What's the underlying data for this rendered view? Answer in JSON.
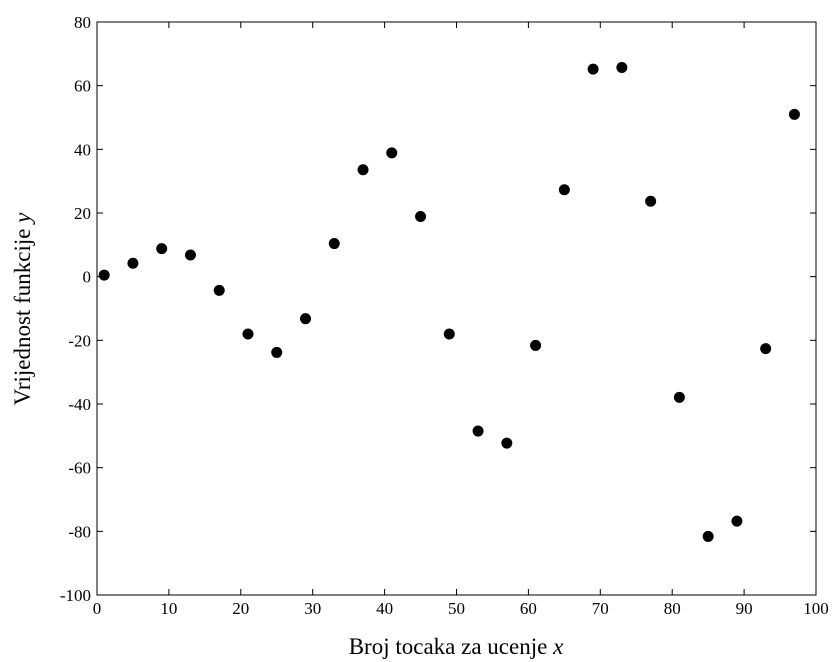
{
  "chart_data": {
    "type": "scatter",
    "xlabel": "Broj tocaka za ucenje",
    "xlabel_var": "x",
    "ylabel": "Vrijednost funkcije",
    "ylabel_var": "y",
    "xlim": [
      0,
      100
    ],
    "ylim": [
      -100,
      80
    ],
    "xticks": [
      0,
      10,
      20,
      30,
      40,
      50,
      60,
      70,
      80,
      90,
      100
    ],
    "yticks": [
      -100,
      -80,
      -60,
      -40,
      -20,
      0,
      20,
      40,
      60,
      80
    ],
    "grid": false,
    "marker_color": "#000000",
    "points": [
      {
        "x": 1,
        "y": 0.5
      },
      {
        "x": 5,
        "y": 4.2
      },
      {
        "x": 9,
        "y": 8.8
      },
      {
        "x": 13,
        "y": 6.8
      },
      {
        "x": 17,
        "y": -4.3
      },
      {
        "x": 21,
        "y": -18
      },
      {
        "x": 25,
        "y": -23.8
      },
      {
        "x": 29,
        "y": -13.2
      },
      {
        "x": 33,
        "y": 10.4
      },
      {
        "x": 37,
        "y": 33.6
      },
      {
        "x": 41,
        "y": 38.9
      },
      {
        "x": 45,
        "y": 18.9
      },
      {
        "x": 49,
        "y": -18
      },
      {
        "x": 53,
        "y": -48.5
      },
      {
        "x": 57,
        "y": -52.3
      },
      {
        "x": 61,
        "y": -21.6
      },
      {
        "x": 65,
        "y": 27.3
      },
      {
        "x": 69,
        "y": 65.2
      },
      {
        "x": 73,
        "y": 65.7
      },
      {
        "x": 77,
        "y": 23.7
      },
      {
        "x": 81,
        "y": -37.9
      },
      {
        "x": 85,
        "y": -81.6
      },
      {
        "x": 89,
        "y": -76.8
      },
      {
        "x": 93,
        "y": -22.6
      },
      {
        "x": 97,
        "y": 51
      }
    ]
  }
}
